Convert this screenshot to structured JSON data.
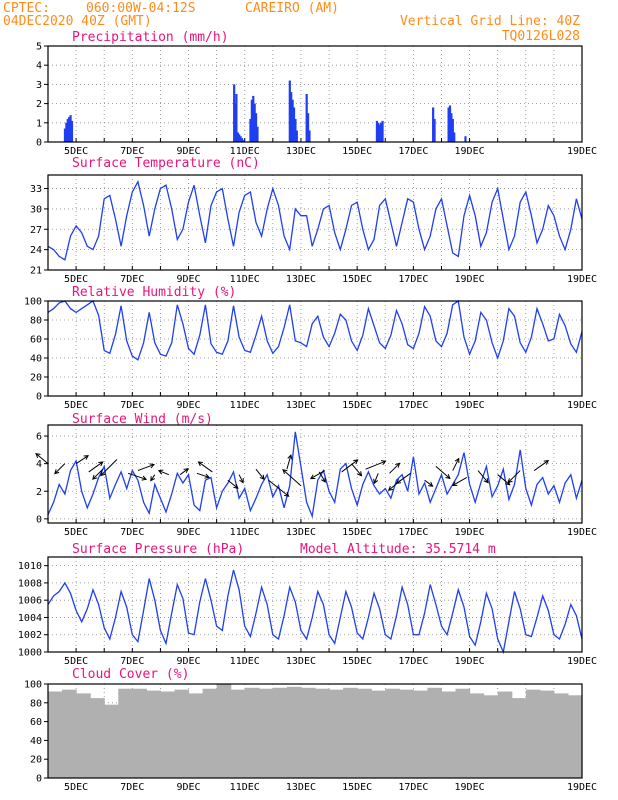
{
  "header": {
    "source": "CPTEC:",
    "location_coords": "060:00W-04:12S",
    "location_name": "CAREIRO (AM)",
    "run": "04DEC2020 40Z (GMT)",
    "grid_note": "Vertical Grid Line: 40Z",
    "code": "TQ0126L028"
  },
  "x_axis": {
    "tick_labels": [
      "5DEC",
      "7DEC",
      "9DEC",
      "11DEC",
      "13DEC",
      "15DEC",
      "17DEC",
      "19DEC"
    ]
  },
  "colors": {
    "series": "#1f3ff0",
    "header": "#ff8c1a",
    "title": "#e8147e",
    "cloud": "#b0b0b0"
  },
  "chart_data": [
    {
      "type": "bar",
      "title": "Precipitation (mm/h)",
      "y_ticks": [
        "0",
        "1",
        "2",
        "3",
        "4",
        "5"
      ],
      "ylim": [
        0,
        5
      ],
      "grid": true,
      "x_days": [
        0.6,
        0.65,
        0.7,
        0.75,
        0.8,
        0.85,
        6.62,
        6.65,
        6.7,
        6.75,
        6.8,
        6.85,
        6.9,
        6.95,
        7.2,
        7.25,
        7.3,
        7.35,
        7.4,
        7.45,
        8.6,
        8.65,
        8.7,
        8.75,
        8.8,
        8.85,
        9.2,
        9.25,
        9.3,
        11.7,
        11.75,
        11.8,
        11.85,
        11.9,
        13.7,
        13.75,
        14.25,
        14.3,
        14.35,
        14.4,
        14.45,
        14.85
      ],
      "values": [
        0.7,
        1.0,
        1.2,
        1.3,
        1.4,
        1.1,
        3.0,
        2.0,
        2.5,
        0.5,
        0.4,
        0.3,
        0.2,
        0.1,
        1.2,
        2.2,
        2.4,
        2.0,
        1.5,
        0.8,
        3.2,
        2.6,
        2.2,
        1.8,
        1.2,
        0.6,
        2.5,
        1.5,
        0.6,
        1.1,
        1.0,
        0.9,
        1.0,
        1.1,
        1.8,
        1.2,
        1.8,
        1.9,
        1.5,
        1.2,
        0.5,
        0.3
      ]
    },
    {
      "type": "line",
      "title": "Surface Temperature (nC)",
      "y_ticks": [
        "21",
        "24",
        "27",
        "30",
        "33"
      ],
      "ylim": [
        21,
        35
      ],
      "grid": true,
      "x_days": [
        0.0,
        0.2,
        0.4,
        0.6,
        0.8,
        1.0,
        1.2,
        1.4,
        1.6,
        1.8,
        2.0,
        2.2,
        2.4,
        2.6,
        2.8,
        3.0,
        3.2,
        3.4,
        3.6,
        3.8,
        4.0,
        4.2,
        4.4,
        4.6,
        4.8,
        5.0,
        5.2,
        5.4,
        5.6,
        5.8,
        6.0,
        6.2,
        6.4,
        6.6,
        6.8,
        7.0,
        7.2,
        7.4,
        7.6,
        7.8,
        8.0,
        8.2,
        8.4,
        8.6,
        8.8,
        9.0,
        9.2,
        9.4,
        9.6,
        9.8,
        10.0,
        10.2,
        10.4,
        10.6,
        10.8,
        11.0,
        11.2,
        11.4,
        11.6,
        11.8,
        12.0,
        12.2,
        12.4,
        12.6,
        12.8,
        13.0,
        13.2,
        13.4,
        13.6,
        13.8,
        14.0,
        14.2,
        14.4,
        14.6,
        14.8,
        15.0,
        15.2,
        15.4,
        15.6,
        15.8,
        16.0,
        16.2,
        16.4,
        16.6,
        16.8,
        17.0,
        17.2,
        17.4,
        17.6,
        17.8,
        18.0,
        18.2,
        18.4,
        18.6,
        18.8,
        19.0
      ],
      "values": [
        24.5,
        24.0,
        23.0,
        22.5,
        26.0,
        27.5,
        26.5,
        24.5,
        24.0,
        26.0,
        31.5,
        32.0,
        28.5,
        24.5,
        29.0,
        32.5,
        34.0,
        30.5,
        26.0,
        30.0,
        33.0,
        33.5,
        30.0,
        25.5,
        27.0,
        31.0,
        33.5,
        29.0,
        25.0,
        30.5,
        32.5,
        33.0,
        28.5,
        24.5,
        29.5,
        32.0,
        32.5,
        28.0,
        26.0,
        30.0,
        33.0,
        30.5,
        26.0,
        24.0,
        30.0,
        29.0,
        29.0,
        24.5,
        27.0,
        30.0,
        30.5,
        26.5,
        24.0,
        27.0,
        30.5,
        31.0,
        27.0,
        24.0,
        25.5,
        30.5,
        31.5,
        28.0,
        24.5,
        28.0,
        31.5,
        31.0,
        27.0,
        24.0,
        26.0,
        30.0,
        31.5,
        27.5,
        23.5,
        23.0,
        29.0,
        32.0,
        29.0,
        24.5,
        26.5,
        31.0,
        33.0,
        28.5,
        24.0,
        26.0,
        31.0,
        32.5,
        29.0,
        25.0,
        27.0,
        30.5,
        29.0,
        26.0,
        24.0,
        27.0,
        31.5,
        28.5
      ]
    },
    {
      "type": "line",
      "title": "Relative Humidity (%)",
      "y_ticks": [
        "0",
        "20",
        "40",
        "60",
        "80",
        "100"
      ],
      "ylim": [
        0,
        100
      ],
      "grid": true,
      "x_days": [
        0.0,
        0.2,
        0.4,
        0.6,
        0.8,
        1.0,
        1.2,
        1.4,
        1.6,
        1.8,
        2.0,
        2.2,
        2.4,
        2.6,
        2.8,
        3.0,
        3.2,
        3.4,
        3.6,
        3.8,
        4.0,
        4.2,
        4.4,
        4.6,
        4.8,
        5.0,
        5.2,
        5.4,
        5.6,
        5.8,
        6.0,
        6.2,
        6.4,
        6.6,
        6.8,
        7.0,
        7.2,
        7.4,
        7.6,
        7.8,
        8.0,
        8.2,
        8.4,
        8.6,
        8.8,
        9.0,
        9.2,
        9.4,
        9.6,
        9.8,
        10.0,
        10.2,
        10.4,
        10.6,
        10.8,
        11.0,
        11.2,
        11.4,
        11.6,
        11.8,
        12.0,
        12.2,
        12.4,
        12.6,
        12.8,
        13.0,
        13.2,
        13.4,
        13.6,
        13.8,
        14.0,
        14.2,
        14.4,
        14.6,
        14.8,
        15.0,
        15.2,
        15.4,
        15.6,
        15.8,
        16.0,
        16.2,
        16.4,
        16.6,
        16.8,
        17.0,
        17.2,
        17.4,
        17.6,
        17.8,
        18.0,
        18.2,
        18.4,
        18.6,
        18.8,
        19.0
      ],
      "values": [
        88,
        92,
        98,
        100,
        92,
        88,
        92,
        96,
        100,
        85,
        48,
        45,
        65,
        95,
        58,
        42,
        38,
        56,
        88,
        56,
        44,
        42,
        56,
        96,
        76,
        50,
        44,
        64,
        96,
        55,
        46,
        44,
        58,
        95,
        62,
        48,
        46,
        64,
        84,
        58,
        45,
        52,
        72,
        96,
        58,
        56,
        52,
        76,
        84,
        62,
        52,
        66,
        86,
        80,
        58,
        48,
        64,
        92,
        74,
        56,
        50,
        64,
        90,
        76,
        54,
        50,
        66,
        94,
        84,
        58,
        52,
        66,
        96,
        100,
        62,
        44,
        58,
        88,
        80,
        56,
        40,
        58,
        92,
        84,
        56,
        46,
        62,
        92,
        76,
        58,
        60,
        86,
        74,
        55,
        46,
        68
      ]
    },
    {
      "type": "line",
      "title": "Surface Wind (m/s)",
      "y_ticks": [
        "0",
        "2",
        "4",
        "6"
      ],
      "ylim": [
        -0.3,
        6.8
      ],
      "grid": true,
      "x_days": [
        0.0,
        0.2,
        0.4,
        0.6,
        0.8,
        1.0,
        1.2,
        1.4,
        1.6,
        1.8,
        2.0,
        2.2,
        2.4,
        2.6,
        2.8,
        3.0,
        3.2,
        3.4,
        3.6,
        3.8,
        4.0,
        4.2,
        4.4,
        4.6,
        4.8,
        5.0,
        5.2,
        5.4,
        5.6,
        5.8,
        6.0,
        6.2,
        6.4,
        6.6,
        6.8,
        7.0,
        7.2,
        7.4,
        7.6,
        7.8,
        8.0,
        8.2,
        8.4,
        8.6,
        8.8,
        9.0,
        9.2,
        9.4,
        9.6,
        9.8,
        10.0,
        10.2,
        10.4,
        10.6,
        10.8,
        11.0,
        11.2,
        11.4,
        11.6,
        11.8,
        12.0,
        12.2,
        12.4,
        12.6,
        12.8,
        13.0,
        13.2,
        13.4,
        13.6,
        13.8,
        14.0,
        14.2,
        14.4,
        14.6,
        14.8,
        15.0,
        15.2,
        15.4,
        15.6,
        15.8,
        16.0,
        16.2,
        16.4,
        16.6,
        16.8,
        17.0,
        17.2,
        17.4,
        17.6,
        17.8,
        18.0,
        18.2,
        18.4,
        18.6,
        18.8,
        19.0
      ],
      "values": [
        0.3,
        1.2,
        2.5,
        1.8,
        3.5,
        4.2,
        2.0,
        0.8,
        1.8,
        3.0,
        3.8,
        1.5,
        2.5,
        3.4,
        2.2,
        3.5,
        2.8,
        1.2,
        0.4,
        2.5,
        1.5,
        0.5,
        1.8,
        3.3,
        2.6,
        3.2,
        1.0,
        0.6,
        2.8,
        3.0,
        0.8,
        2.0,
        2.6,
        3.4,
        1.5,
        2.2,
        0.6,
        1.5,
        2.5,
        3.2,
        1.6,
        2.4,
        0.8,
        2.4,
        6.3,
        3.8,
        1.2,
        0.2,
        2.8,
        3.5,
        2.0,
        1.2,
        3.6,
        4.0,
        2.2,
        1.0,
        2.5,
        3.4,
        2.4,
        1.8,
        2.2,
        1.5,
        2.8,
        3.2,
        2.0,
        4.5,
        1.8,
        2.6,
        1.2,
        2.2,
        3.2,
        1.8,
        2.5,
        3.2,
        4.8,
        2.5,
        1.2,
        2.6,
        3.8,
        1.6,
        2.4,
        3.6,
        1.4,
        2.5,
        5.0,
        2.2,
        1.0,
        2.5,
        3.0,
        1.8,
        2.4,
        1.2,
        2.6,
        3.2,
        1.5,
        2.8
      ],
      "vector_x_days": [
        0.0,
        0.6,
        1.0,
        1.45,
        1.95,
        2.45,
        2.85,
        3.2,
        3.8,
        4.3,
        4.7,
        5.3,
        5.85,
        6.4,
        6.8,
        7.4,
        7.85,
        8.5,
        9.0,
        9.65,
        9.85,
        10.45,
        10.8,
        11.3,
        11.75,
        12.15,
        12.55,
        12.9,
        13.4,
        13.8,
        14.4,
        14.9,
        15.3,
        16.0,
        16.8,
        17.3
      ],
      "vector_y": [
        4.0,
        4.0,
        4.0,
        3.4,
        3.6,
        4.3,
        3.3,
        3.5,
        3.2,
        3.2,
        3.2,
        3.3,
        3.4,
        2.8,
        3.2,
        3.6,
        2.8,
        3.6,
        2.4,
        3.4,
        3.5,
        3.4,
        4.0,
        3.6,
        3.3,
        3.3,
        2.8,
        3.3,
        2.8,
        3.8,
        3.5,
        3.0,
        3.5,
        3.2,
        3.5,
        3.5
      ],
      "vector_dx": [
        -12,
        -10,
        12,
        14,
        -10,
        -16,
        18,
        16,
        -4,
        -10,
        8,
        12,
        -14,
        10,
        4,
        8,
        20,
        4,
        -18,
        6,
        -14,
        16,
        10,
        20,
        -4,
        10,
        -12,
        -14,
        8,
        14,
        6,
        -14,
        10,
        12,
        -12,
        14
      ],
      "vector_dy": [
        -10,
        10,
        -8,
        -10,
        10,
        16,
        6,
        -6,
        6,
        -4,
        -6,
        4,
        -10,
        8,
        8,
        10,
        16,
        -14,
        -16,
        10,
        8,
        -12,
        12,
        -8,
        10,
        -10,
        10,
        10,
        6,
        12,
        -12,
        8,
        12,
        10,
        12,
        -10
      ]
    },
    {
      "type": "line",
      "title": "Surface Pressure (hPa)",
      "annotation": "Model Altitude: 35.5714 m",
      "y_ticks": [
        "1000",
        "1002",
        "1004",
        "1006",
        "1008",
        "1010"
      ],
      "ylim": [
        1000,
        1011
      ],
      "grid": true,
      "x_days": [
        0.0,
        0.2,
        0.4,
        0.6,
        0.8,
        1.0,
        1.2,
        1.4,
        1.6,
        1.8,
        2.0,
        2.2,
        2.4,
        2.6,
        2.8,
        3.0,
        3.2,
        3.4,
        3.6,
        3.8,
        4.0,
        4.2,
        4.4,
        4.6,
        4.8,
        5.0,
        5.2,
        5.4,
        5.6,
        5.8,
        6.0,
        6.2,
        6.4,
        6.6,
        6.8,
        7.0,
        7.2,
        7.4,
        7.6,
        7.8,
        8.0,
        8.2,
        8.4,
        8.6,
        8.8,
        9.0,
        9.2,
        9.4,
        9.6,
        9.8,
        10.0,
        10.2,
        10.4,
        10.6,
        10.8,
        11.0,
        11.2,
        11.4,
        11.6,
        11.8,
        12.0,
        12.2,
        12.4,
        12.6,
        12.8,
        13.0,
        13.2,
        13.4,
        13.6,
        13.8,
        14.0,
        14.2,
        14.4,
        14.6,
        14.8,
        15.0,
        15.2,
        15.4,
        15.6,
        15.8,
        16.0,
        16.2,
        16.4,
        16.6,
        16.8,
        17.0,
        17.2,
        17.4,
        17.6,
        17.8,
        18.0,
        18.2,
        18.4,
        18.6,
        18.8,
        19.0
      ],
      "values": [
        1005.5,
        1006.5,
        1007.0,
        1008.0,
        1006.8,
        1004.8,
        1003.5,
        1005.0,
        1007.2,
        1005.5,
        1002.8,
        1001.5,
        1004.0,
        1007.0,
        1005.2,
        1002.0,
        1001.2,
        1004.8,
        1008.5,
        1006.0,
        1002.5,
        1001.0,
        1004.5,
        1007.8,
        1006.2,
        1002.2,
        1002.0,
        1005.8,
        1008.5,
        1006.0,
        1003.0,
        1002.5,
        1006.5,
        1009.5,
        1007.2,
        1003.0,
        1001.8,
        1004.5,
        1007.5,
        1005.5,
        1002.0,
        1001.5,
        1004.2,
        1007.5,
        1005.8,
        1002.5,
        1001.5,
        1004.0,
        1007.0,
        1005.5,
        1002.0,
        1001.0,
        1004.0,
        1007.0,
        1005.2,
        1002.2,
        1001.5,
        1004.0,
        1006.8,
        1005.0,
        1002.0,
        1001.5,
        1004.2,
        1007.5,
        1005.5,
        1002.0,
        1002.0,
        1004.5,
        1007.8,
        1005.5,
        1003.0,
        1002.0,
        1004.5,
        1007.2,
        1005.2,
        1001.8,
        1000.8,
        1003.5,
        1006.8,
        1005.0,
        1001.5,
        1000.0,
        1003.5,
        1007.0,
        1005.0,
        1002.0,
        1001.8,
        1004.0,
        1006.5,
        1004.8,
        1002.0,
        1001.5,
        1003.2,
        1005.5,
        1004.2,
        1001.5
      ]
    },
    {
      "type": "bar",
      "title": "Cloud Cover (%)",
      "y_ticks": [
        "0",
        "20",
        "40",
        "60",
        "80",
        "100"
      ],
      "ylim": [
        0,
        100
      ],
      "grid": true,
      "x_days": [
        0.0,
        0.5,
        1.0,
        1.5,
        2.0,
        2.5,
        3.0,
        3.5,
        4.0,
        4.5,
        5.0,
        5.5,
        6.0,
        6.5,
        7.0,
        7.5,
        8.0,
        8.5,
        9.0,
        9.5,
        10.0,
        10.5,
        11.0,
        11.5,
        12.0,
        12.5,
        13.0,
        13.5,
        14.0,
        14.5,
        15.0,
        15.5,
        16.0,
        16.5,
        17.0,
        17.5,
        18.0,
        18.5
      ],
      "values": [
        92,
        94,
        90,
        85,
        78,
        95,
        95,
        93,
        92,
        94,
        90,
        95,
        100,
        94,
        96,
        95,
        96,
        97,
        96,
        95,
        94,
        96,
        95,
        93,
        95,
        94,
        93,
        96,
        92,
        95,
        90,
        88,
        92,
        85,
        94,
        93,
        90,
        88
      ]
    }
  ]
}
